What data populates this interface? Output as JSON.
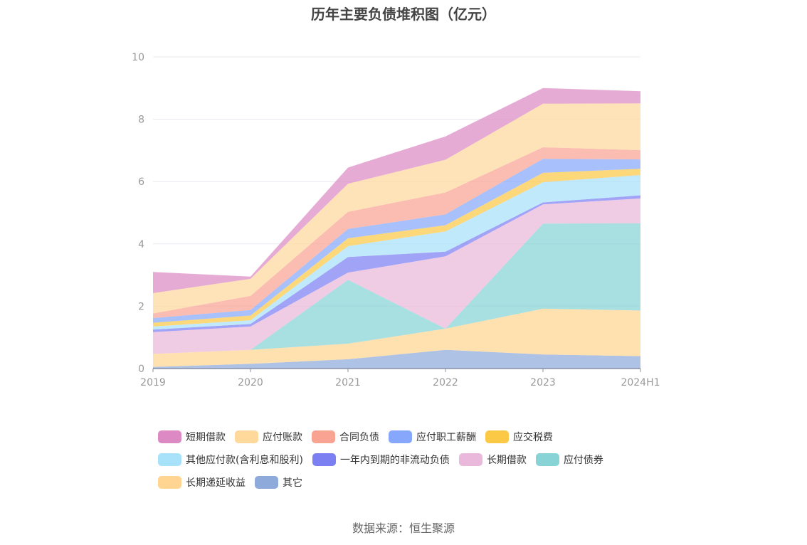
{
  "chart_data": {
    "type": "area",
    "stacked": true,
    "title": "历年主要负债堆积图（亿元）",
    "categories": [
      "2019",
      "2020",
      "2021",
      "2022",
      "2023",
      "2024H1"
    ],
    "ylim": [
      0,
      10
    ],
    "yticks": [
      0,
      2,
      4,
      6,
      8,
      10
    ],
    "grid": true,
    "legend_position": "bottom",
    "series": [
      {
        "name": "其它",
        "color": "#8eaadb",
        "values": [
          0.05,
          0.15,
          0.3,
          0.6,
          0.45,
          0.4
        ]
      },
      {
        "name": "长期递延收益",
        "color": "#ffd591",
        "values": [
          0.42,
          0.45,
          0.5,
          0.68,
          1.47,
          1.46
        ]
      },
      {
        "name": "应付债券",
        "color": "#87d3d6",
        "values": [
          0,
          0,
          2.05,
          0,
          2.73,
          2.8
        ]
      },
      {
        "name": "长期借款",
        "color": "#eab8da",
        "values": [
          0.7,
          0.75,
          0.23,
          2.32,
          0.62,
          0.8
        ]
      },
      {
        "name": "一年内到期的非流动负债",
        "color": "#7b7ff2",
        "values": [
          0.08,
          0.08,
          0.5,
          0.15,
          0.06,
          0.1
        ]
      },
      {
        "name": "其他应付款(含利息和股利)",
        "color": "#a8e1fa",
        "values": [
          0.1,
          0.12,
          0.35,
          0.65,
          0.65,
          0.65
        ]
      },
      {
        "name": "应交税费",
        "color": "#fcc946",
        "values": [
          0.12,
          0.15,
          0.25,
          0.2,
          0.3,
          0.2
        ]
      },
      {
        "name": "应付职工薪酬",
        "color": "#86a7fb",
        "values": [
          0.15,
          0.18,
          0.3,
          0.35,
          0.45,
          0.3
        ]
      },
      {
        "name": "合同负债",
        "color": "#f9a393",
        "values": [
          0.15,
          0.45,
          0.55,
          0.7,
          0.37,
          0.3
        ]
      },
      {
        "name": "应付账款",
        "color": "#ffd89c",
        "values": [
          0.65,
          0.55,
          0.9,
          1.05,
          1.4,
          1.5
        ]
      },
      {
        "name": "短期借款",
        "color": "#dd8ac4",
        "values": [
          0.68,
          0.07,
          0.52,
          0.75,
          0.5,
          0.39
        ]
      }
    ],
    "legend_order": [
      "短期借款",
      "应付账款",
      "合同负债",
      "应付职工薪酬",
      "应交税费",
      "其他应付款(含利息和股利)",
      "一年内到期的非流动负债",
      "长期借款",
      "应付债券",
      "长期递延收益",
      "其它"
    ]
  },
  "source": "数据来源：恒生聚源"
}
